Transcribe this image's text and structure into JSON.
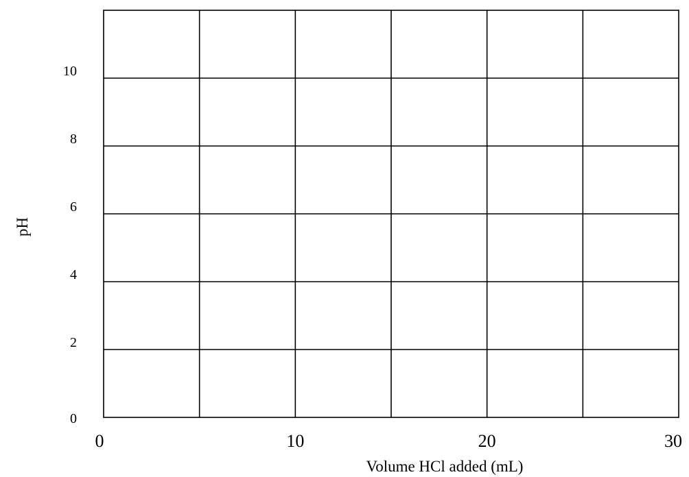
{
  "chart_data": {
    "type": "line",
    "title": "",
    "xlabel": "Volume HCl added (mL)",
    "ylabel": "pH",
    "xlim": [
      0,
      30
    ],
    "ylim": [
      0,
      12
    ],
    "x_ticks": [
      0,
      10,
      20,
      30
    ],
    "y_ticks": [
      0,
      2,
      4,
      6,
      8,
      10
    ],
    "x_tick_labels": [
      "0",
      "10",
      "20",
      "30"
    ],
    "y_tick_labels": [
      "0",
      "2",
      "4",
      "6",
      "8",
      "10"
    ],
    "x_grid_every": 5,
    "y_grid_every": 2,
    "grid": true,
    "series": [],
    "colors": {
      "grid": "#000000",
      "background": "#ffffff"
    }
  }
}
